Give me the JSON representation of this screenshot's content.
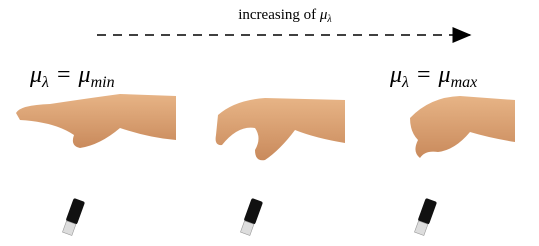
{
  "arrow_label": {
    "text": "increasing of",
    "math": "μ",
    "sub": "λ"
  },
  "left_label": {
    "lhs": "μ",
    "lhs_sub": "λ",
    "op": "=",
    "rhs": "μ",
    "rhs_sub": "min"
  },
  "right_label": {
    "lhs": "μ",
    "lhs_sub": "λ",
    "op": "=",
    "rhs": "μ",
    "rhs_sub": "max"
  }
}
